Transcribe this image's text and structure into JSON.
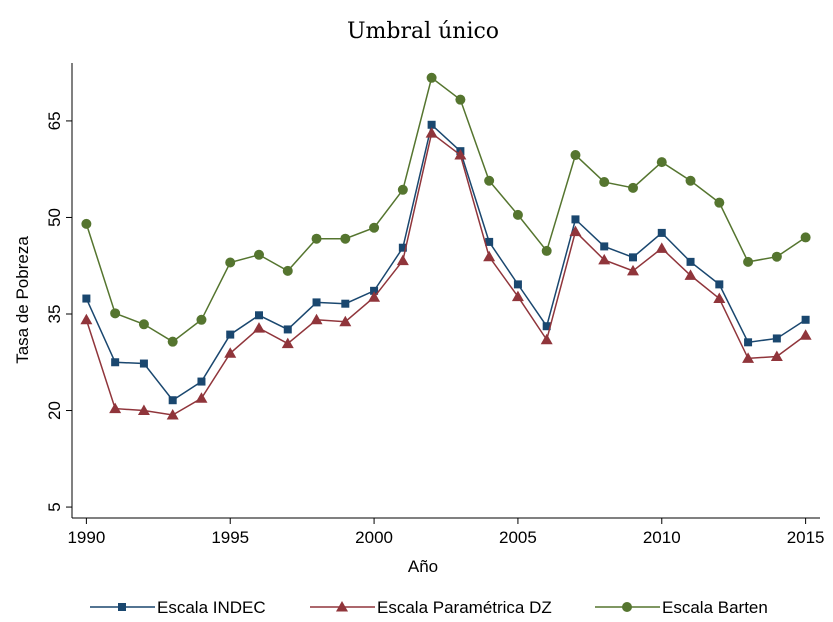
{
  "chart_data": {
    "type": "line",
    "title": "Umbral único",
    "x_label": "Año",
    "y_label": "Tasa de Pobreza",
    "x": [
      1990,
      1991,
      1992,
      1993,
      1994,
      1995,
      1996,
      1997,
      1998,
      1999,
      2000,
      2001,
      2002,
      2003,
      2004,
      2005,
      2006,
      2007,
      2008,
      2009,
      2010,
      2011,
      2012,
      2013,
      2014,
      2015
    ],
    "series": [
      {
        "name": "Escala INDEC",
        "color": "#1a476f",
        "marker": "square",
        "values": [
          37.4,
          27.5,
          27.3,
          21.6,
          24.5,
          31.8,
          34.8,
          32.6,
          36.8,
          36.6,
          38.6,
          45.3,
          64.4,
          60.3,
          46.2,
          39.6,
          33.1,
          49.7,
          45.5,
          43.8,
          47.6,
          43.1,
          39.6,
          30.6,
          31.2,
          34.1
        ]
      },
      {
        "name": "Escala Paramétrica DZ",
        "color": "#90353b",
        "marker": "triangle",
        "values": [
          34.1,
          20.3,
          20.0,
          19.3,
          21.9,
          28.9,
          32.8,
          30.4,
          34.1,
          33.8,
          37.6,
          43.3,
          63.1,
          59.7,
          43.9,
          37.7,
          31.0,
          47.8,
          43.4,
          41.7,
          45.2,
          41.0,
          37.4,
          28.1,
          28.4,
          31.7
        ]
      },
      {
        "name": "Escala Barten",
        "color": "#55752f",
        "marker": "circle",
        "values": [
          49.0,
          35.1,
          33.4,
          30.7,
          34.1,
          43.0,
          44.2,
          41.7,
          46.7,
          46.7,
          48.4,
          54.3,
          71.7,
          68.3,
          55.7,
          50.4,
          44.8,
          59.7,
          55.5,
          54.6,
          58.6,
          55.7,
          52.3,
          43.1,
          43.9,
          46.9
        ]
      }
    ],
    "xlim": [
      1989.5,
      2015.5
    ],
    "xticks": [
      1990,
      1995,
      2000,
      2005,
      2010,
      2015
    ],
    "ylim": [
      3.3,
      74
    ],
    "yticks": [
      5,
      20,
      35,
      50,
      65
    ],
    "legend": "bottom"
  }
}
